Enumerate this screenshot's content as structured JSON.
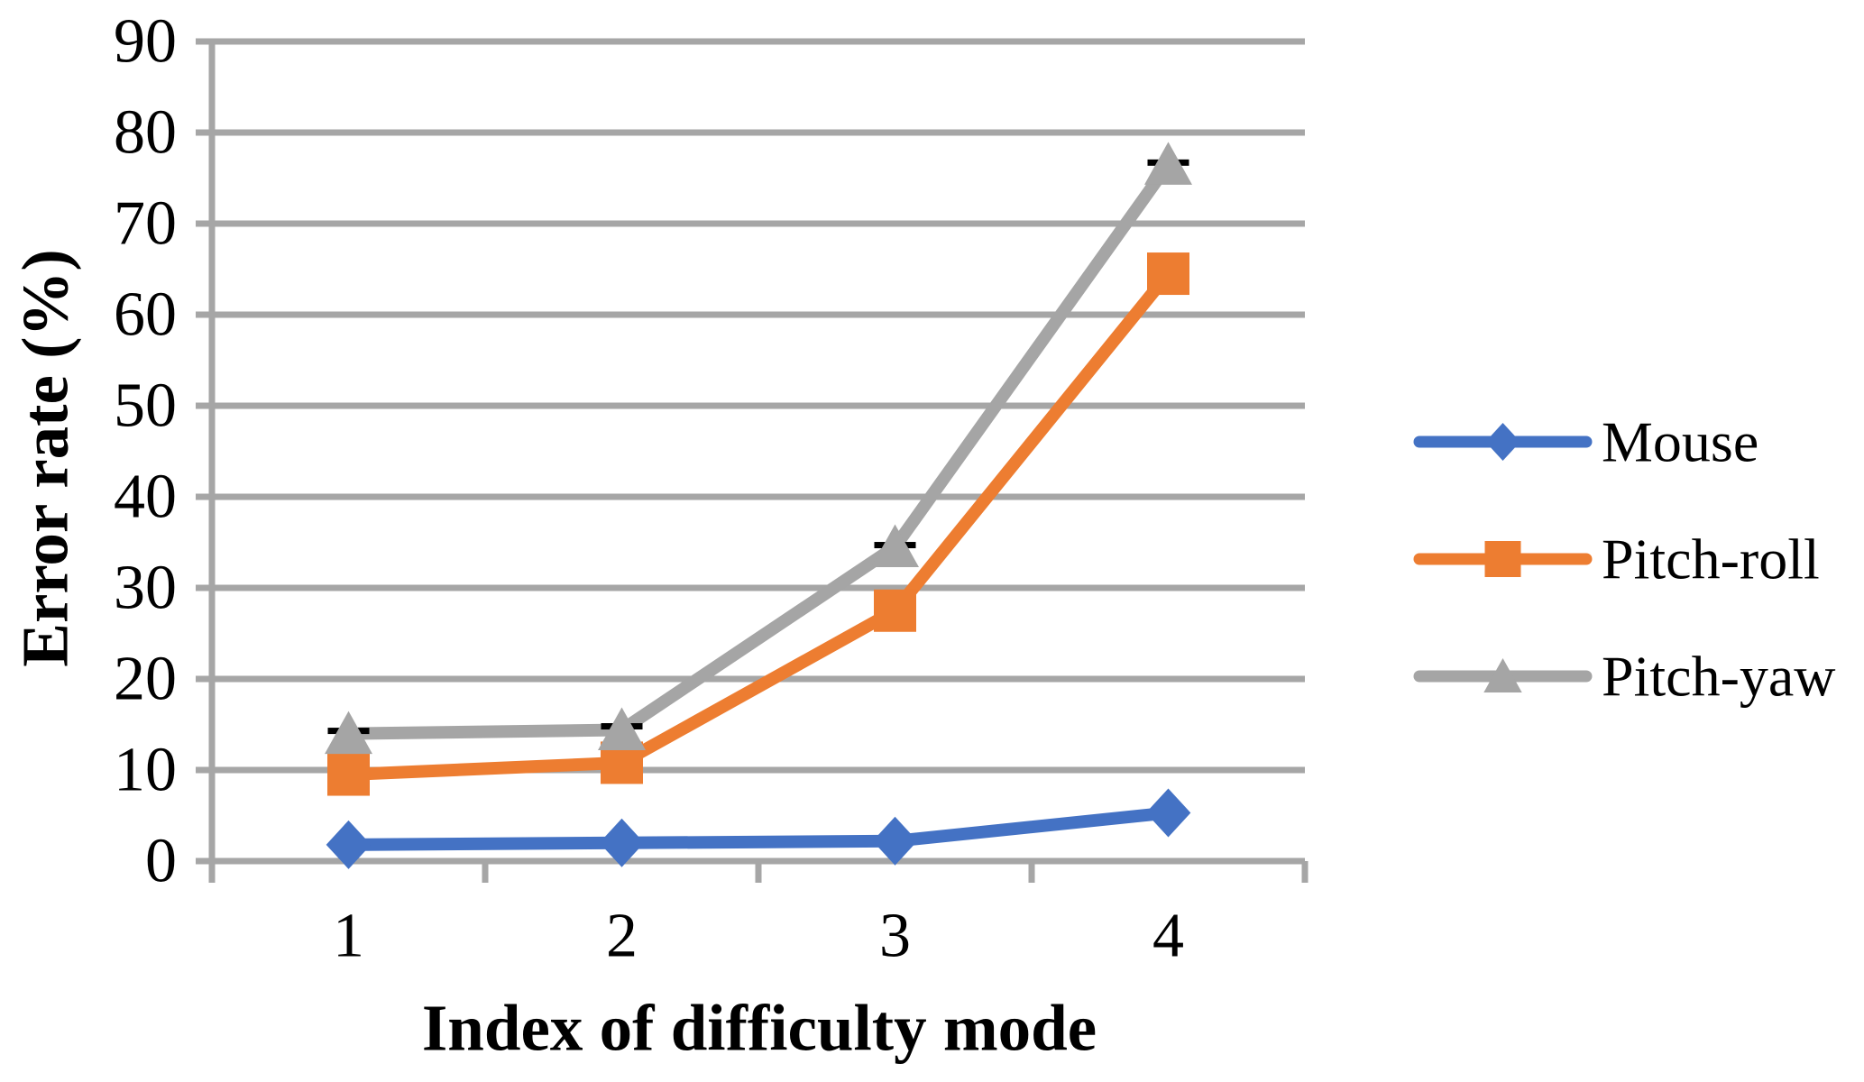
{
  "chart_data": {
    "type": "line",
    "title": "",
    "xlabel": "Index of difficulty mode",
    "ylabel": "Error rate (%)",
    "categories": [
      "1",
      "2",
      "3",
      "4"
    ],
    "ylim": [
      0,
      90
    ],
    "yticks": [
      0,
      10,
      20,
      30,
      40,
      50,
      60,
      70,
      80,
      90
    ],
    "grid": "horizontal",
    "legend_position": "right",
    "series": [
      {
        "name": "Mouse",
        "color": "#4472C4",
        "marker": "diamond",
        "values": [
          1.8,
          2.0,
          2.2,
          5.3
        ]
      },
      {
        "name": "Pitch-roll",
        "color": "#ED7D31",
        "marker": "square",
        "values": [
          9.5,
          10.8,
          27.5,
          64.5
        ]
      },
      {
        "name": "Pitch-yaw",
        "color": "#A5A5A5",
        "marker": "triangle",
        "values": [
          14.0,
          14.4,
          34.5,
          76.5
        ],
        "error_caps_top": [
          14.3,
          14.8,
          34.7,
          76.7
        ]
      }
    ],
    "colors": {
      "gridline": "#A6A6A6",
      "axis": "#A6A6A6",
      "text": "#000000",
      "error_bar": "#000000",
      "background": "#FFFFFF"
    }
  }
}
